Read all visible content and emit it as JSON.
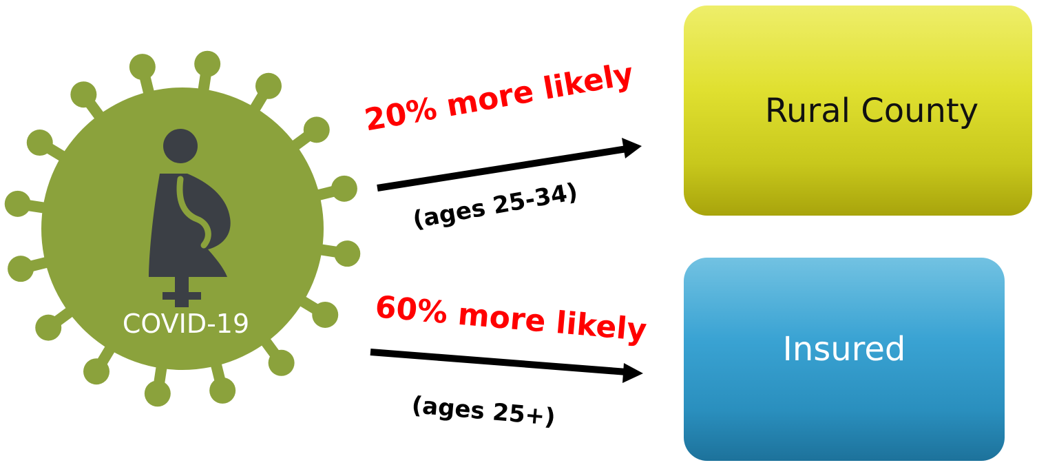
{
  "virus": {
    "label": "COVID-19"
  },
  "arrows": [
    {
      "headline": "20% more likely",
      "ages": "(ages 25-34)"
    },
    {
      "headline": "60% more likely",
      "ages": "(ages 25+)"
    }
  ],
  "outcomes": [
    {
      "label": "Rural County"
    },
    {
      "label": "Insured"
    }
  ],
  "colors": {
    "virus": "#8ba23c",
    "figure": "#3b3f45",
    "headline": "#ff0000",
    "rural_box": "#e4e43a",
    "insured_box": "#2e98c8"
  }
}
